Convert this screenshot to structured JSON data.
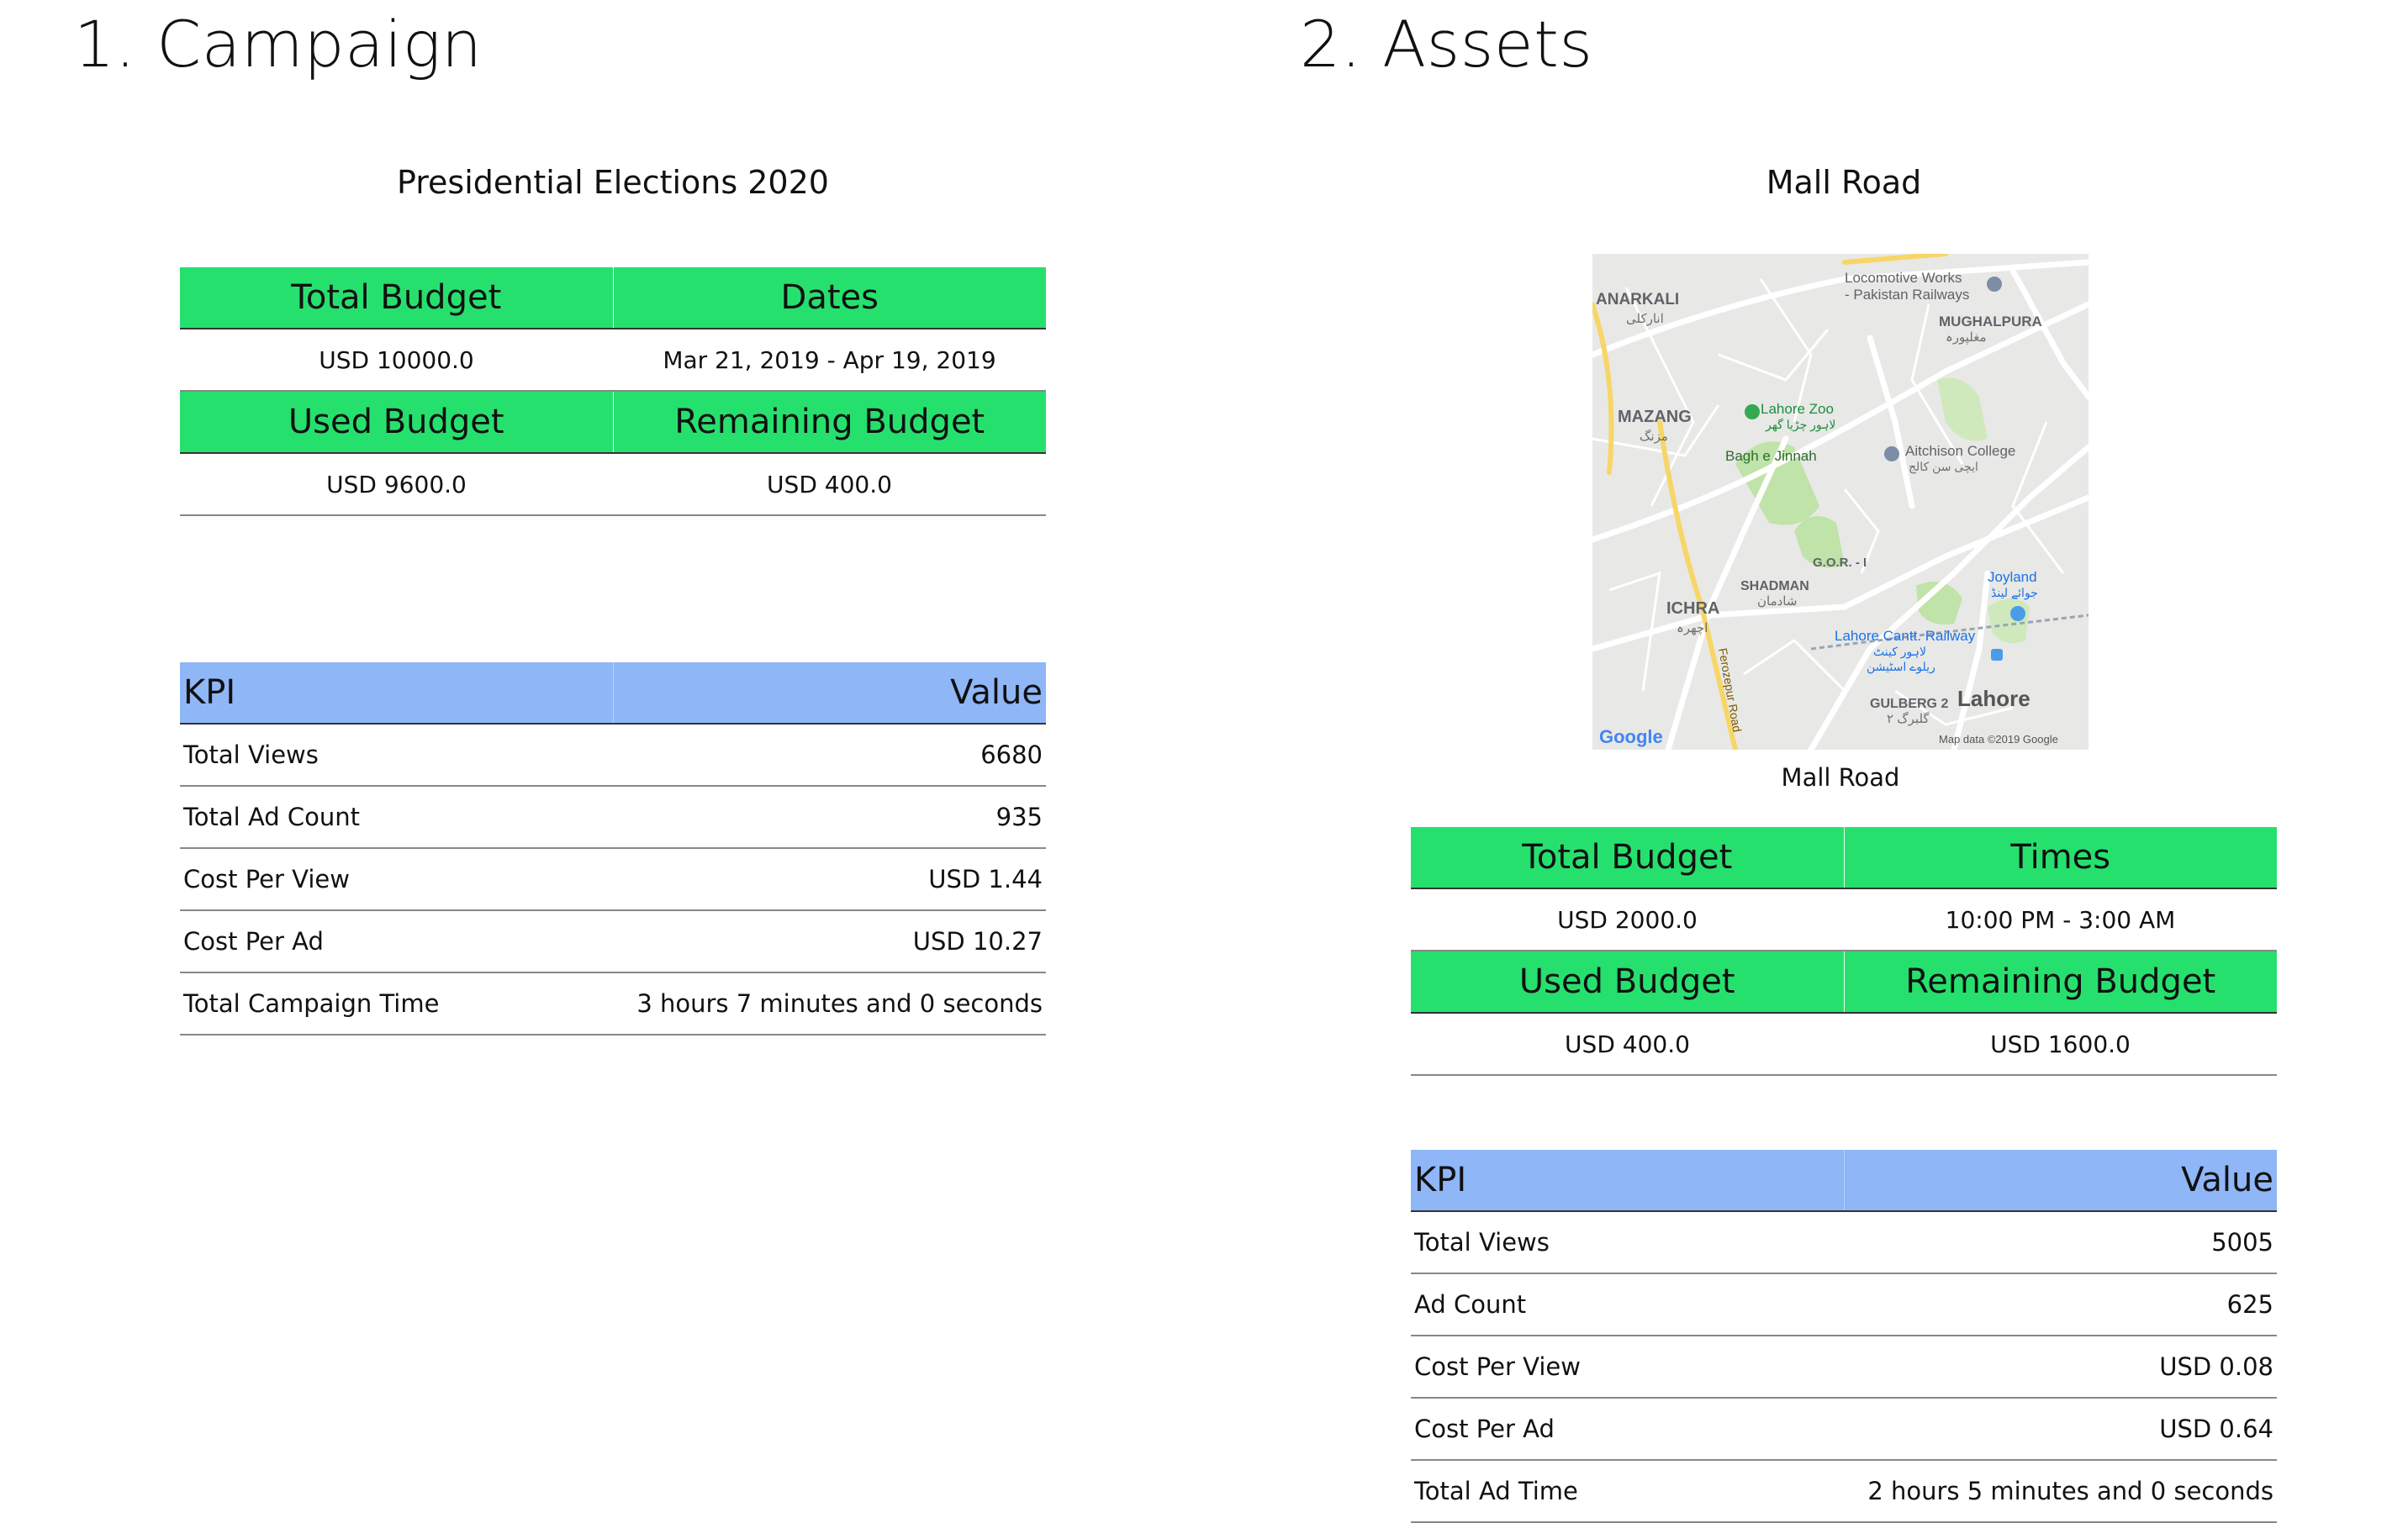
{
  "campaign": {
    "section_title": "1. Campaign",
    "name": "Presidential Elections 2020",
    "budget_table": {
      "headers1": [
        "Total Budget",
        "Dates"
      ],
      "values1": [
        "USD 10000.0",
        "Mar 21, 2019 - Apr 19, 2019"
      ],
      "headers2": [
        "Used Budget",
        "Remaining Budget"
      ],
      "values2": [
        "USD 9600.0",
        "USD 400.0"
      ]
    },
    "kpi_table": {
      "headers": [
        "KPI",
        "Value"
      ],
      "rows": [
        {
          "kpi": "Total Views",
          "value": "6680"
        },
        {
          "kpi": "Total Ad Count",
          "value": "935"
        },
        {
          "kpi": "Cost Per View",
          "value": "USD 1.44"
        },
        {
          "kpi": "Cost Per Ad",
          "value": "USD 10.27"
        },
        {
          "kpi": "Total Campaign Time",
          "value": "3 hours 7 minutes and 0 seconds"
        }
      ]
    }
  },
  "assets": {
    "section_title": "2. Assets",
    "name": "Mall Road",
    "map": {
      "caption": "Mall Road",
      "labels": {
        "anarkali": "ANARKALI",
        "anarkali_urdu": "انارکلی",
        "locomotive": "Locomotive Works",
        "locomotive2": "- Pakistan Railways",
        "mughalpura": "MUGHALPURA",
        "mughalpura_urdu": "مغلپورہ",
        "mazang": "MAZANG",
        "mazang_urdu": "مزنگ",
        "lahore_zoo": "Lahore Zoo",
        "lahore_zoo_urdu": "لاہور چڑیا گھر",
        "bagh": "Bagh e Jinnah",
        "aitchison": "Aitchison College",
        "aitchison_urdu": "ایچی سن کالج",
        "gor": "G.O.R. - I",
        "shadman": "SHADMAN",
        "shadman_urdu": "شادمان",
        "joyland": "Joyland",
        "joyland_urdu": "جوائے لینڈ",
        "ichra": "ICHRA",
        "ichra_urdu": "اچھرہ",
        "cantt": "Lahore Cantt. Railway",
        "cantt_urdu": "لاہور کینٹ",
        "cantt_urdu2": "ریلوے اسٹیشن",
        "gulberg": "GULBERG 2",
        "gulberg_urdu": "گلبرگ ۲",
        "lahore": "Lahore",
        "ferozepur": "Ferozepur Road",
        "google": "Google",
        "map_data": "Map data ©2019 Google"
      }
    },
    "budget_table": {
      "headers1": [
        "Total Budget",
        "Times"
      ],
      "values1": [
        "USD 2000.0",
        "10:00 PM - 3:00 AM"
      ],
      "headers2": [
        "Used Budget",
        "Remaining Budget"
      ],
      "values2": [
        "USD 400.0",
        "USD 1600.0"
      ]
    },
    "kpi_table": {
      "headers": [
        "KPI",
        "Value"
      ],
      "rows": [
        {
          "kpi": "Total Views",
          "value": "5005"
        },
        {
          "kpi": "Ad Count",
          "value": "625"
        },
        {
          "kpi": "Cost Per View",
          "value": "USD 0.08"
        },
        {
          "kpi": "Cost Per Ad",
          "value": "USD 0.64"
        },
        {
          "kpi": "Total Ad Time",
          "value": "2 hours 5 minutes and 0 seconds"
        }
      ]
    }
  },
  "colors": {
    "header_green": "#26e06e",
    "header_blue": "#8fb6f7"
  }
}
